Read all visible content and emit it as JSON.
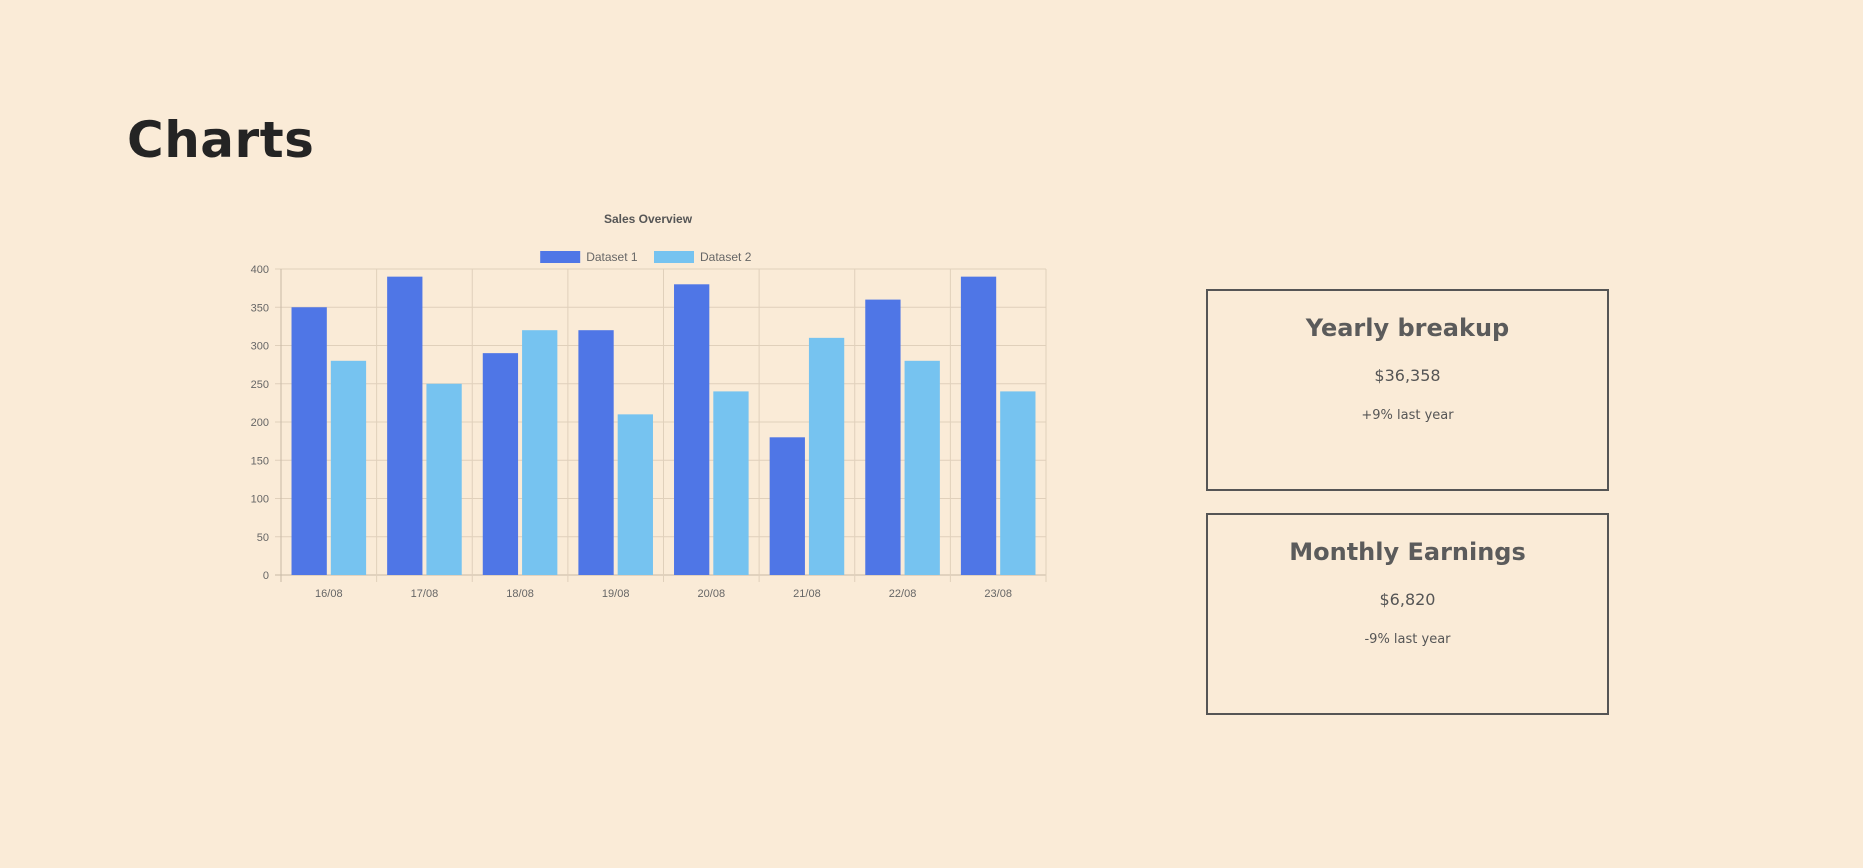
{
  "page": {
    "title": "Charts"
  },
  "chart_data": {
    "type": "bar",
    "title": "Sales Overview",
    "xlabel": "",
    "ylabel": "",
    "categories": [
      "16/08",
      "17/08",
      "18/08",
      "19/08",
      "20/08",
      "21/08",
      "22/08",
      "23/08"
    ],
    "series": [
      {
        "name": "Dataset 1",
        "color": "#4f76e6",
        "values": [
          350,
          390,
          290,
          320,
          380,
          180,
          360,
          390
        ]
      },
      {
        "name": "Dataset 2",
        "color": "#76c3f0",
        "values": [
          280,
          250,
          320,
          210,
          240,
          310,
          280,
          240
        ]
      }
    ],
    "ylim": [
      0,
      400
    ],
    "yticks": [
      0,
      50,
      100,
      150,
      200,
      250,
      300,
      350,
      400
    ],
    "grid": true,
    "legend_position": "top"
  },
  "cards": [
    {
      "title": "Yearly breakup",
      "amount": "$36,358",
      "delta": "+9% last year"
    },
    {
      "title": "Monthly Earnings",
      "amount": "$6,820",
      "delta": "-9% last year"
    }
  ]
}
